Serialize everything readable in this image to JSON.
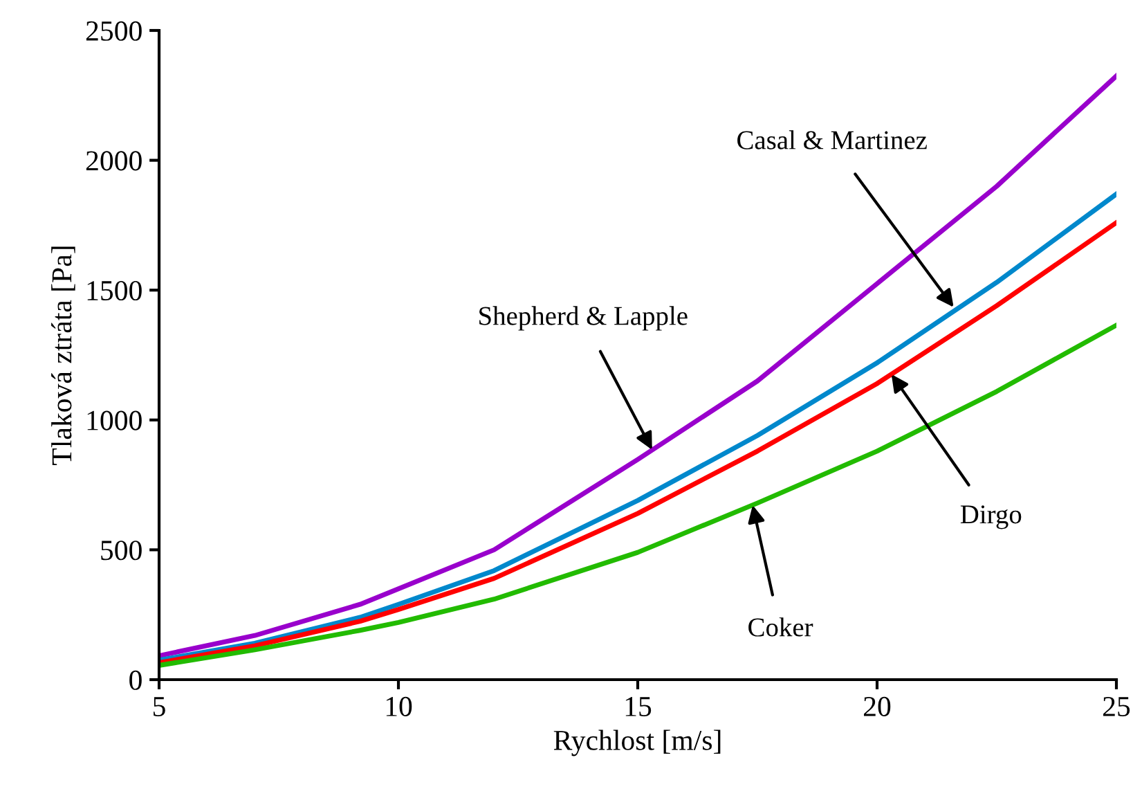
{
  "chart_data": {
    "type": "line",
    "xlabel": "Rychlost [m/s]",
    "ylabel": "Tlaková ztráta [Pa]",
    "x": [
      5,
      7,
      9.2,
      10,
      12,
      15,
      17.5,
      20,
      22.5,
      25
    ],
    "series": [
      {
        "color": "#9900cc",
        "values": [
          92,
          170,
          290,
          350,
          500,
          848,
          1150,
          1525,
          1900,
          2325
        ]
      },
      {
        "color": "#0088cc",
        "values": [
          75,
          140,
          240,
          290,
          420,
          690,
          940,
          1220,
          1530,
          1870
        ]
      },
      {
        "color": "#ff0000",
        "values": [
          65,
          130,
          225,
          270,
          390,
          640,
          880,
          1140,
          1440,
          1760
        ]
      },
      {
        "color": "#22bb00",
        "values": [
          55,
          115,
          190,
          220,
          310,
          490,
          680,
          880,
          1110,
          1365
        ]
      }
    ],
    "annotations": [
      {
        "text": "Shepherd & Lapple",
        "x": 15.3,
        "y": 885
      },
      {
        "text": "Casal & Martinez",
        "x": 21.6,
        "y": 1434
      },
      {
        "text": "Dirgo",
        "x": 20.3,
        "y": 1176
      },
      {
        "text": "Coker",
        "x": 17.4,
        "y": 672
      }
    ],
    "xlim": [
      5,
      25
    ],
    "xticks": [
      5,
      10,
      15,
      20,
      25
    ],
    "ylim": [
      0,
      2500
    ],
    "yticks": [
      0,
      500,
      1000,
      1500,
      2000,
      2500
    ],
    "grid": false,
    "legend": false,
    "marker": "none",
    "line_style": "solid"
  }
}
